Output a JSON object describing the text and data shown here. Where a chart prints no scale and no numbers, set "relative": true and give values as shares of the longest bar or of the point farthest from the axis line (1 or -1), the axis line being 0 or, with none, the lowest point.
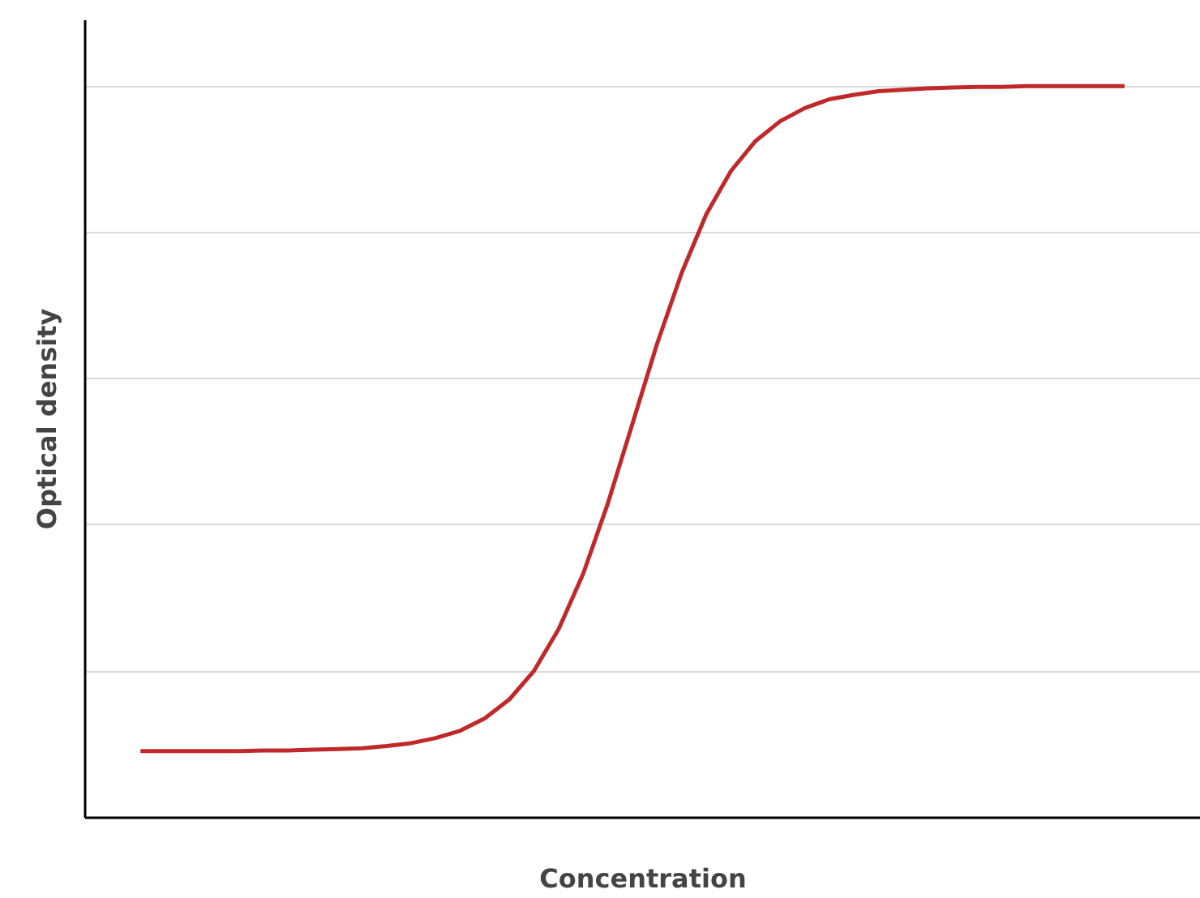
{
  "chart_data": {
    "type": "line",
    "relative": true,
    "xlabel": "Concentration",
    "ylabel": "Optical density",
    "grid": "y",
    "line_style": "solid",
    "categories": [
      null,
      null,
      null,
      null,
      null,
      null,
      null,
      null,
      null,
      null,
      null,
      null,
      null,
      null,
      null,
      null,
      null,
      null,
      null,
      null,
      null,
      null,
      null,
      null,
      null,
      null,
      null,
      null,
      null,
      null,
      null,
      null,
      null,
      null,
      null,
      null,
      null,
      null,
      null,
      null,
      null
    ],
    "series": [
      {
        "color": "#c0282a",
        "values": [
          0.091,
          0.091,
          0.091,
          0.091,
          0.091,
          0.092,
          0.092,
          0.093,
          0.094,
          0.095,
          0.098,
          0.102,
          0.109,
          0.119,
          0.136,
          0.162,
          0.201,
          0.258,
          0.334,
          0.43,
          0.539,
          0.648,
          0.745,
          0.825,
          0.884,
          0.925,
          0.952,
          0.97,
          0.982,
          0.988,
          0.993,
          0.995,
          0.997,
          0.998,
          0.999,
          0.999,
          1,
          1,
          1,
          1,
          1
        ]
      }
    ]
  }
}
